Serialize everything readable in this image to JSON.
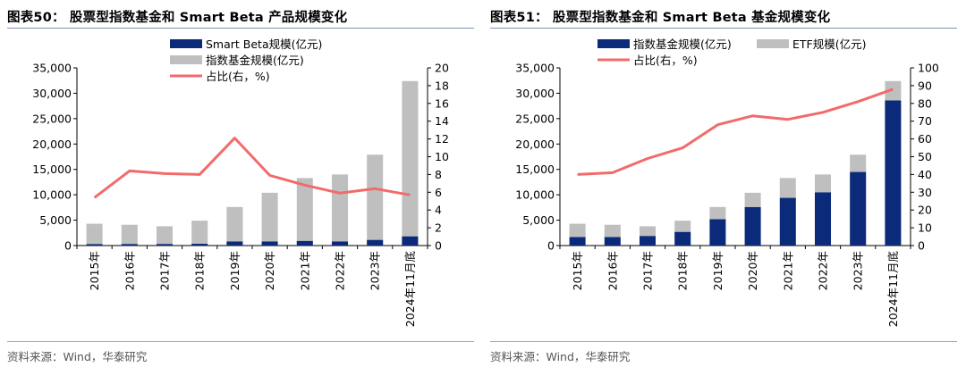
{
  "colors": {
    "navy": "#0b2a7a",
    "gray": "#bfbfbf",
    "line": "#f26b6b",
    "axis": "#000000"
  },
  "left": {
    "title": "图表50：  股票型指数基金和 Smart Beta 产品规模变化",
    "source": "资料来源：Wind，华泰研究"
  },
  "right": {
    "title": "图表51：  股票型指数基金和 Smart Beta 基金规模变化",
    "source": "资料来源：Wind，华泰研究"
  },
  "chart_data": [
    {
      "type": "bar",
      "stacking": "overlay",
      "categories": [
        "2015年",
        "2016年",
        "2017年",
        "2018年",
        "2019年",
        "2020年",
        "2021年",
        "2022年",
        "2023年",
        "2024年11月底"
      ],
      "series": [
        {
          "name": "Smart Beta规模(亿元)",
          "type": "bar",
          "color": "#0b2a7a",
          "axis": "left",
          "values": [
            280,
            300,
            300,
            350,
            800,
            800,
            900,
            800,
            1100,
            1800
          ]
        },
        {
          "name": "指数基金规模(亿元)",
          "type": "bar",
          "color": "#bfbfbf",
          "axis": "left",
          "values": [
            4300,
            4100,
            3800,
            4900,
            7600,
            10400,
            13300,
            14000,
            17900,
            32400
          ]
        },
        {
          "name": "占比(右，%)",
          "type": "line",
          "color": "#f26b6b",
          "axis": "right",
          "values": [
            5.4,
            8.4,
            8.1,
            8.0,
            12.1,
            7.9,
            6.8,
            5.9,
            6.4,
            5.7
          ]
        }
      ],
      "y_left": {
        "min": 0,
        "max": 35000,
        "step": 5000,
        "ticks": [
          "0",
          "5,000",
          "10,000",
          "15,000",
          "20,000",
          "25,000",
          "30,000",
          "35,000"
        ]
      },
      "y_right": {
        "min": 0,
        "max": 20,
        "step": 2,
        "ticks": [
          "0",
          "2",
          "4",
          "6",
          "8",
          "10",
          "12",
          "14",
          "16",
          "18",
          "20"
        ]
      },
      "legend_position": "top-center",
      "grid": false
    },
    {
      "type": "bar",
      "stacking": "stacked",
      "categories": [
        "2015年",
        "2016年",
        "2017年",
        "2018年",
        "2019年",
        "2020年",
        "2021年",
        "2022年",
        "2023年",
        "2024年11月底"
      ],
      "series": [
        {
          "name": "指数基金规模(亿元)",
          "type": "bar",
          "color": "#0b2a7a",
          "axis": "left",
          "values": [
            1700,
            1700,
            1900,
            2700,
            5200,
            7600,
            9400,
            10500,
            14500,
            28600
          ]
        },
        {
          "name": "ETF规模(亿元)",
          "type": "bar",
          "color": "#bfbfbf",
          "axis": "left",
          "values": [
            2600,
            2400,
            1900,
            2200,
            2400,
            2800,
            3900,
            3500,
            3400,
            3800
          ]
        },
        {
          "name": "占比(右，%)",
          "type": "line",
          "color": "#f26b6b",
          "axis": "right",
          "values": [
            40,
            41,
            49,
            55,
            68,
            73,
            71,
            75,
            81,
            88
          ]
        }
      ],
      "y_left": {
        "min": 0,
        "max": 35000,
        "step": 5000,
        "ticks": [
          "0",
          "5,000",
          "10,000",
          "15,000",
          "20,000",
          "25,000",
          "30,000",
          "35,000"
        ]
      },
      "y_right": {
        "min": 0,
        "max": 100,
        "step": 10,
        "ticks": [
          "0",
          "10",
          "20",
          "30",
          "40",
          "50",
          "60",
          "70",
          "80",
          "90",
          "100"
        ]
      },
      "legend_position": "top-center",
      "grid": false
    }
  ]
}
